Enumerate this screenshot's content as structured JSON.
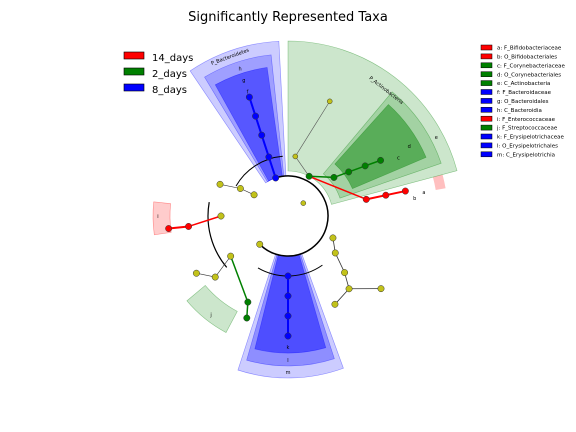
{
  "chart_data": {
    "type": "cladogram",
    "title": "Significantly Represented Taxa",
    "groups": [
      {
        "name": "14_days",
        "color": "#ff0000"
      },
      {
        "name": "2_days",
        "color": "#008000"
      },
      {
        "name": "8_days",
        "color": "#0000ff"
      }
    ],
    "enriched_taxa": [
      {
        "id": "a",
        "name": "F_Bifidobacteriaceae",
        "group": "14_days"
      },
      {
        "id": "b",
        "name": "O_Bifidobacteriales",
        "group": "14_days"
      },
      {
        "id": "c",
        "name": "F_Corynebacteriaceae",
        "group": "2_days"
      },
      {
        "id": "d",
        "name": "O_Corynebacteriales",
        "group": "2_days"
      },
      {
        "id": "e",
        "name": "C_Actinobacteria",
        "group": "2_days"
      },
      {
        "id": "f",
        "name": "F_Bacteroidaceae",
        "group": "8_days"
      },
      {
        "id": "g",
        "name": "O_Bacteroidales",
        "group": "8_days"
      },
      {
        "id": "h",
        "name": "C_Bacteroidia",
        "group": "8_days"
      },
      {
        "id": "i",
        "name": "F_Enterococcaceae",
        "group": "14_days"
      },
      {
        "id": "j",
        "name": "F_Streptococcaceae",
        "group": "2_days"
      },
      {
        "id": "k",
        "name": "F_Erysipelotrichaceae",
        "group": "8_days"
      },
      {
        "id": "l",
        "name": "O_Erysipelotrichales",
        "group": "8_days"
      },
      {
        "id": "m",
        "name": "C_Erysipelotrichia",
        "group": "8_days"
      }
    ],
    "phylum_labels": [
      {
        "text": "P_Bacteroidetes",
        "group": "8_days"
      },
      {
        "text": "P_Actinobacteria",
        "group": "2_days"
      }
    ],
    "node_colors": {
      "neutral": "#c2c21a",
      "edge": "#000000"
    }
  }
}
